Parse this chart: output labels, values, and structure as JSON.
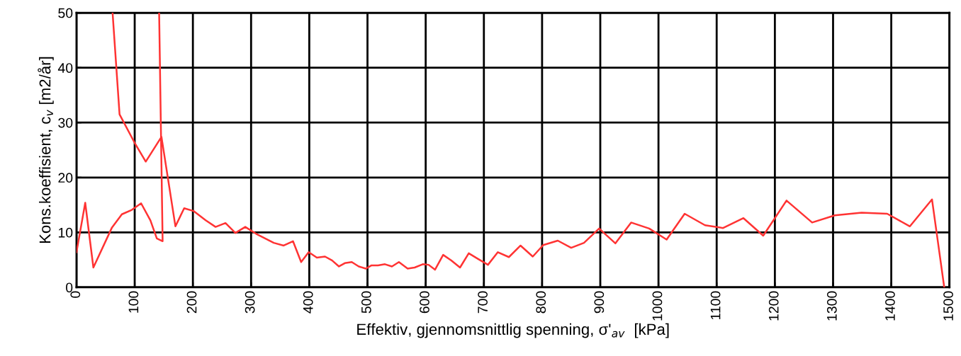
{
  "chart_data": {
    "type": "line",
    "xlabel": "Effektiv, gjennomsnittlig spenning, σ'$_{av}$  [kPa]",
    "ylabel": "Kons.koeffisient, c$_{v}$ [m2/år]",
    "xlim": [
      0,
      1500
    ],
    "xticks": [
      0,
      100,
      200,
      300,
      400,
      500,
      600,
      700,
      800,
      900,
      1000,
      1100,
      1200,
      1300,
      1400,
      1500
    ],
    "ylim": [
      0,
      50
    ],
    "yticks": [
      0,
      10,
      20,
      30,
      40,
      50
    ],
    "grid": true,
    "marker": "none",
    "line_style": "solid",
    "series": [
      {
        "color": "#ff3333",
        "x": [
          0,
          15,
          29,
          61,
          78,
          95,
          111,
          127,
          138,
          148,
          142,
          null,
          62,
          74,
          101,
          119,
          146,
          170,
          185,
          201,
          222,
          239,
          256,
          273,
          290,
          311,
          339,
          356,
          372,
          386,
          399,
          413,
          427,
          439,
          451,
          461,
          473,
          485,
          497,
          507,
          518,
          530,
          542,
          554,
          569,
          581,
          595,
          605,
          616,
          630,
          644,
          659,
          674,
          688,
          707,
          724,
          743,
          763,
          784,
          802,
          827,
          850,
          872,
          898,
          926,
          953,
          984,
          1014,
          1045,
          1080,
          1111,
          1146,
          1180,
          1220,
          1264,
          1303,
          1349,
          1393,
          1432,
          1470,
          1491
        ],
        "values": [
          6.4,
          15.4,
          3.6,
          10.9,
          13.3,
          14.1,
          15.3,
          12.2,
          8.9,
          8.4,
          50,
          null,
          50,
          31.5,
          26.1,
          22.9,
          27.4,
          11.1,
          14.4,
          13.9,
          12.2,
          11.0,
          11.7,
          9.9,
          11.0,
          9.6,
          8.1,
          7.6,
          8.4,
          4.6,
          6.4,
          5.4,
          5.6,
          4.9,
          3.8,
          4.4,
          4.6,
          3.8,
          3.4,
          4.0,
          4.0,
          4.2,
          3.8,
          4.6,
          3.4,
          3.6,
          4.2,
          4.1,
          3.2,
          5.9,
          4.9,
          3.6,
          6.2,
          5.3,
          4.1,
          6.4,
          5.5,
          7.6,
          5.6,
          7.7,
          8.5,
          7.2,
          8.1,
          10.7,
          8.0,
          11.8,
          10.7,
          8.7,
          13.4,
          11.3,
          10.8,
          12.6,
          9.4,
          15.8,
          11.8,
          13.1,
          13.6,
          13.4,
          11.1,
          16.0,
          0
        ]
      }
    ]
  }
}
